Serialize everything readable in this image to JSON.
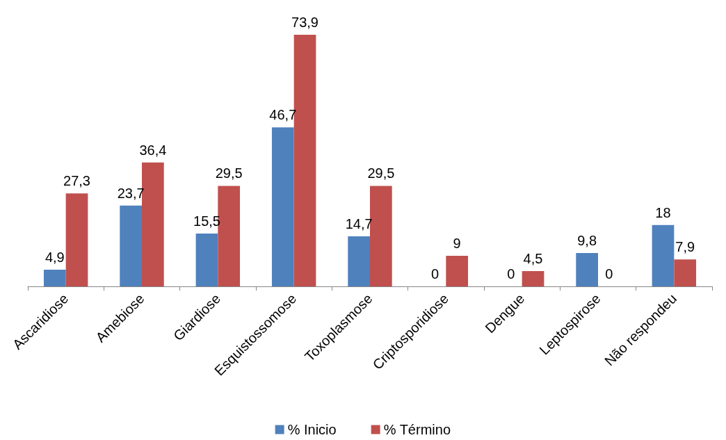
{
  "chart_data": {
    "type": "bar",
    "categories": [
      "Ascaridiose",
      "Amebiose",
      "Giardiose",
      "Esquistossomose",
      "Toxoplasmose",
      "Criptosporidiose",
      "Dengue",
      "Leptospirose",
      "Não respondeu"
    ],
    "series": [
      {
        "name": "% Inicio",
        "color": "#4f81bd",
        "values": [
          4.9,
          23.7,
          15.5,
          46.7,
          14.7,
          0,
          0,
          9.8,
          18
        ],
        "value_labels": [
          "4,9",
          "23,7",
          "15,5",
          "46,7",
          "14,7",
          "0",
          "0",
          "9,8",
          "18"
        ]
      },
      {
        "name": "% Término",
        "color": "#c0504d",
        "values": [
          27.3,
          36.4,
          29.5,
          73.9,
          29.5,
          9,
          4.5,
          0,
          7.9
        ],
        "value_labels": [
          "27,3",
          "36,4",
          "29,5",
          "73,9",
          "29,5",
          "9",
          "4,5",
          "0",
          "7,9"
        ]
      }
    ],
    "legend": "bottom"
  }
}
